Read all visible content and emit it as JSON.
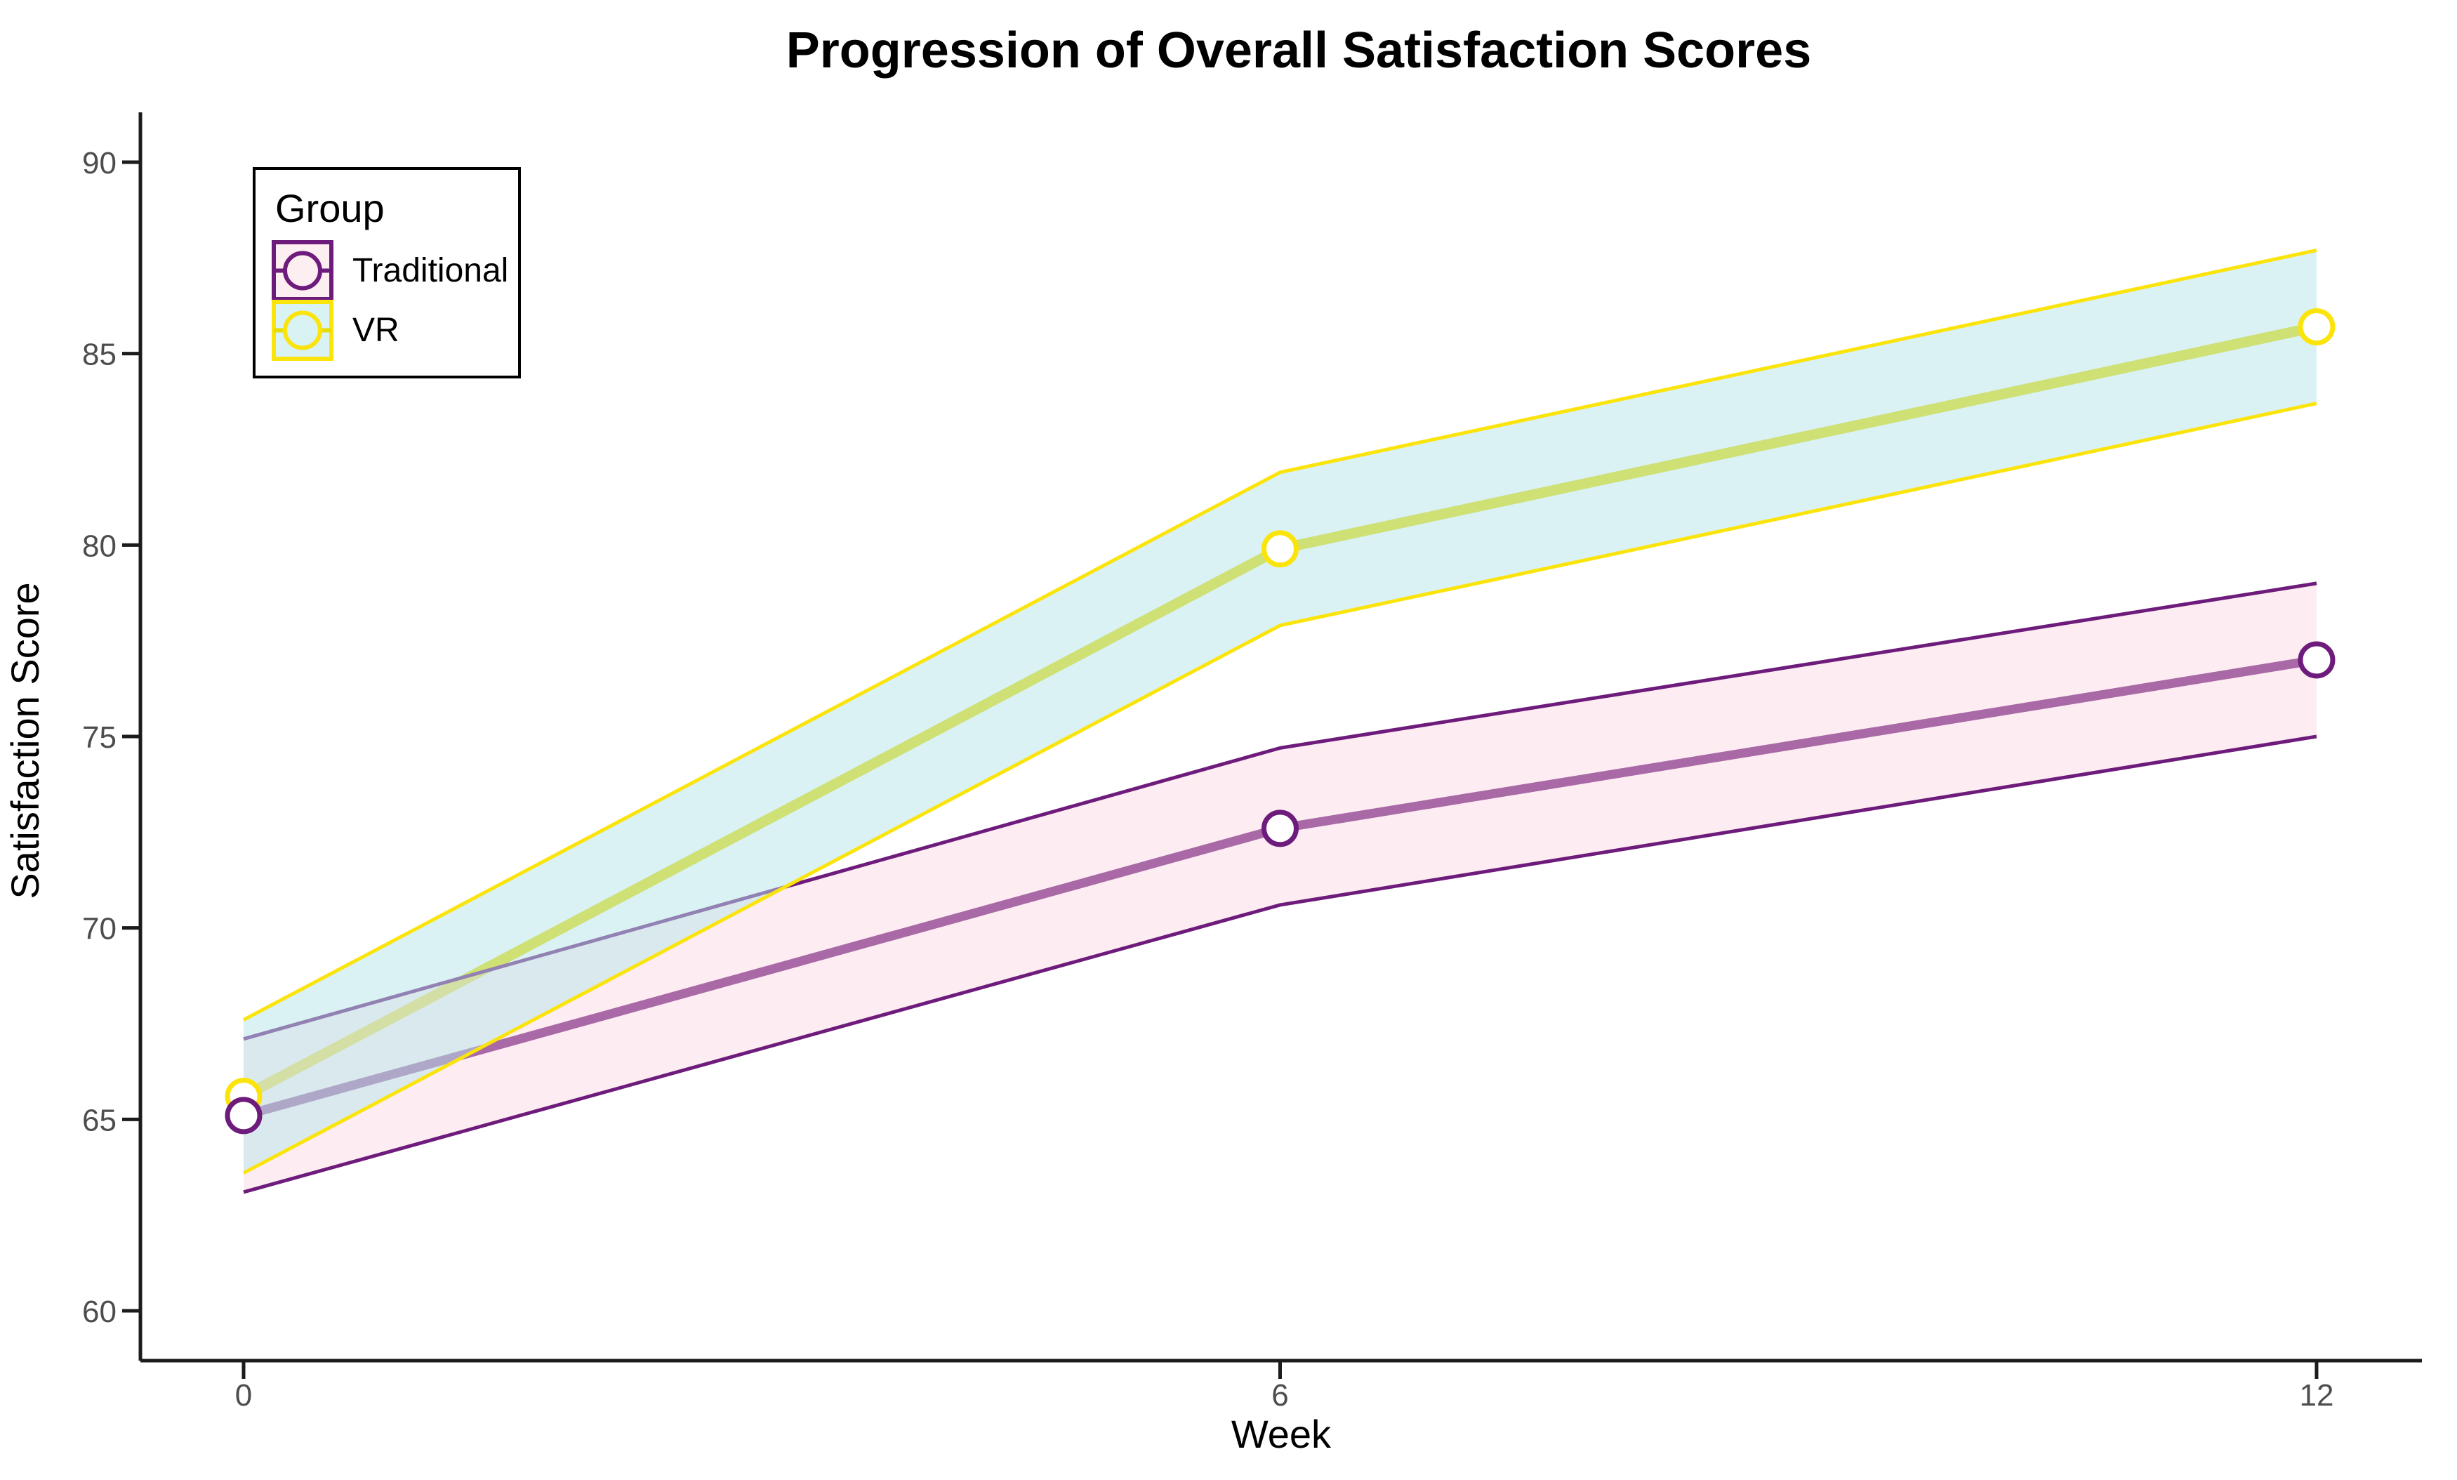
{
  "title": "Progression of Overall Satisfaction Scores",
  "legend": {
    "title": "Group",
    "entries": [
      "Traditional",
      "VR"
    ],
    "position": "inset top-left"
  },
  "chart_data": {
    "type": "line",
    "title": "Progression of Overall Satisfaction Scores",
    "xlabel": "Week",
    "ylabel": "Satisfaction Score",
    "x": [
      0,
      6,
      12
    ],
    "x_ticks": [
      0,
      6,
      12
    ],
    "y_ticks": [
      60,
      65,
      70,
      75,
      80,
      85,
      90
    ],
    "xlim": [
      0,
      12
    ],
    "ylim": [
      58.5,
      91.5
    ],
    "grid": false,
    "band_type": "confidence ribbon",
    "series": [
      {
        "name": "Traditional",
        "values": [
          65.1,
          72.6,
          77.0
        ],
        "ci_lower": [
          63.1,
          70.6,
          75.0
        ],
        "ci_upper": [
          67.1,
          74.7,
          79.0
        ],
        "marker": "open-circle",
        "line_color": "#6e1c7c",
        "edge_color": "#6e1c7c",
        "key_fill": "#fdeef2",
        "fill_rgba": "rgba(250,213,223,0.42)"
      },
      {
        "name": "VR",
        "values": [
          65.6,
          79.9,
          85.7
        ],
        "ci_lower": [
          63.6,
          77.9,
          83.7
        ],
        "ci_upper": [
          67.6,
          81.9,
          87.7
        ],
        "marker": "open-circle",
        "line_color": "#e8db00",
        "edge_color": "#fbe40c",
        "key_fill": "#d9f2f4",
        "fill_rgba": "rgba(181,229,233,0.5)"
      }
    ]
  },
  "colors": {
    "background": "#ffffff",
    "axis_line": "#1b1b1b",
    "tick_label": "#4d4d4d",
    "title_text": "#000000",
    "legend_border": "#000000",
    "marker_fill": "#ffffff"
  }
}
